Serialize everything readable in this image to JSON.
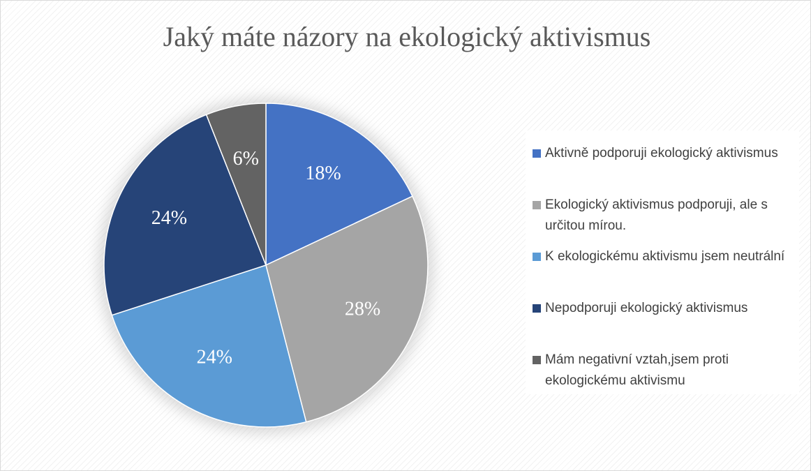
{
  "chart_data": {
    "type": "pie",
    "title": "Jaký máte názory na ekologický aktivismus",
    "categories": [
      "Aktivně podporuji ekologický aktivismus",
      "Ekologický aktivismus podporuji, ale s určitou mírou.",
      "K ekologickému aktivismu jsem neutrální",
      "Nepodporuji ekologický aktivismus",
      "Mám negativní vztah,jsem proti ekologickému aktivismu"
    ],
    "values": [
      18,
      28,
      24,
      24,
      6
    ],
    "value_labels": [
      "18%",
      "28%",
      "24%",
      "24%",
      "6%"
    ],
    "colors": [
      "#4472c4",
      "#a5a5a5",
      "#5b9bd5",
      "#264478",
      "#636363"
    ],
    "legend": "right"
  }
}
